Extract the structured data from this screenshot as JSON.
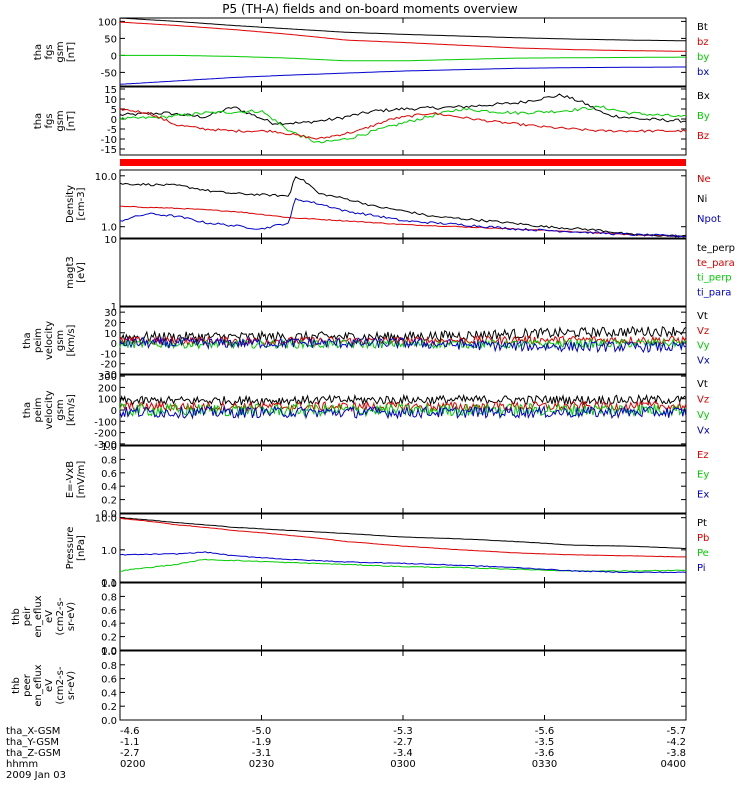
{
  "title": "P5 (TH-A) fields and on-board moments overview",
  "colors": {
    "black": "#000000",
    "red": "#dd0000",
    "green": "#00cc00",
    "blue": "#0000cc",
    "bar": "#ff0000"
  },
  "time_ticks": [
    "0200",
    "0230",
    "0300",
    "0330",
    "0400"
  ],
  "footer": {
    "rows": [
      {
        "label": "tha_X-GSM",
        "values": [
          "-4.6",
          "-5.0",
          "-5.3",
          "-5.6",
          "-5.7"
        ]
      },
      {
        "label": "tha_Y-GSM",
        "values": [
          "-1.1",
          "-1.9",
          "-2.7",
          "-3.5",
          "-4.2"
        ]
      },
      {
        "label": "tha_Z-GSM",
        "values": [
          "-2.7",
          "-3.1",
          "-3.4",
          "-3.6",
          "-3.8"
        ]
      },
      {
        "label": "hhmm",
        "values": []
      }
    ],
    "date": "2009 Jan 03"
  },
  "chart_data": [
    {
      "type": "line",
      "ylabel": [
        "tha",
        "fgs",
        "gsm",
        "[nT]"
      ],
      "ylim": [
        -90,
        110
      ],
      "yticks": [
        "100",
        "50",
        "0",
        "-50"
      ],
      "ytick_values": [
        100,
        50,
        0,
        -50
      ],
      "scale": "linear",
      "series": [
        {
          "name": "Bt",
          "color": "black",
          "x": [
            0,
            0.1,
            0.2,
            0.3,
            0.4,
            0.5,
            0.6,
            0.7,
            0.8,
            0.9,
            1
          ],
          "y": [
            110,
            100,
            88,
            78,
            68,
            62,
            57,
            52,
            48,
            45,
            43
          ]
        },
        {
          "name": "bz",
          "color": "red",
          "x": [
            0,
            0.1,
            0.2,
            0.3,
            0.4,
            0.5,
            0.6,
            0.7,
            0.8,
            0.9,
            1
          ],
          "y": [
            98,
            88,
            76,
            62,
            45,
            38,
            30,
            22,
            17,
            14,
            12
          ]
        },
        {
          "name": "by",
          "color": "green",
          "x": [
            0,
            0.1,
            0.2,
            0.3,
            0.4,
            0.5,
            0.6,
            0.7,
            0.8,
            0.9,
            1
          ],
          "y": [
            0,
            0,
            -3,
            -8,
            -16,
            -16,
            -12,
            -8,
            -7,
            -6,
            -5
          ]
        },
        {
          "name": "bx",
          "color": "blue",
          "x": [
            0,
            0.1,
            0.2,
            0.3,
            0.4,
            0.5,
            0.6,
            0.7,
            0.8,
            0.9,
            1
          ],
          "y": [
            -85,
            -75,
            -65,
            -58,
            -52,
            -46,
            -42,
            -38,
            -36,
            -35,
            -34
          ]
        }
      ]
    },
    {
      "type": "line",
      "ylabel": [
        "tha",
        "fgs",
        "gsm",
        "[nT]"
      ],
      "ylim": [
        -18,
        16
      ],
      "yticks": [
        "15",
        "10",
        "5",
        "0",
        "-5",
        "-10",
        "-15"
      ],
      "ytick_values": [
        15,
        10,
        5,
        0,
        -5,
        -10,
        -15
      ],
      "scale": "linear",
      "series": [
        {
          "name": "Bx",
          "color": "black",
          "x": [
            0,
            0.08,
            0.15,
            0.2,
            0.27,
            0.32,
            0.38,
            0.45,
            0.5,
            0.6,
            0.7,
            0.78,
            0.82,
            0.86,
            0.92,
            1
          ],
          "y": [
            2,
            3,
            1,
            6,
            -2,
            -2,
            0,
            4,
            5,
            6,
            8,
            12,
            8,
            2,
            0,
            -1
          ],
          "noise": 0.8
        },
        {
          "name": "By",
          "color": "green",
          "x": [
            0,
            0.08,
            0.15,
            0.25,
            0.3,
            0.35,
            0.4,
            0.45,
            0.5,
            0.6,
            0.7,
            0.78,
            0.85,
            0.9,
            1
          ],
          "y": [
            0,
            1,
            3,
            4,
            -6,
            -12,
            -10,
            -6,
            -2,
            5,
            3,
            4,
            6,
            3,
            1
          ],
          "noise": 0.8
        },
        {
          "name": "Bz",
          "color": "red",
          "x": [
            0,
            0.05,
            0.1,
            0.15,
            0.2,
            0.27,
            0.35,
            0.42,
            0.48,
            0.55,
            0.65,
            0.75,
            0.85,
            1
          ],
          "y": [
            5,
            3,
            -3,
            -5,
            -6,
            -6,
            -10,
            -6,
            0,
            3,
            -1,
            -4,
            -6,
            -6
          ],
          "noise": 0.6
        }
      ]
    },
    {
      "type": "line",
      "ylabel": [
        "Density",
        "[cm-3]"
      ],
      "ylim": [
        0.6,
        13
      ],
      "yticks": [
        "10.0",
        "1.0"
      ],
      "ytick_values": [
        10,
        1
      ],
      "scale": "log",
      "series": [
        {
          "name": "Ne",
          "color": "red",
          "x": [
            0,
            0.1,
            0.2,
            0.3,
            0.4,
            0.5,
            0.6,
            0.7,
            0.8,
            0.9,
            1
          ],
          "y": [
            2.5,
            2.3,
            2.0,
            1.5,
            1.3,
            1.1,
            1.0,
            0.9,
            0.8,
            0.7,
            0.65
          ],
          "noise": 0.02
        },
        {
          "name": "Ni",
          "color": "black",
          "x": [
            0,
            0.1,
            0.16,
            0.2,
            0.3,
            0.31,
            0.35,
            0.45,
            0.55,
            0.65,
            0.75,
            0.85,
            0.9,
            1
          ],
          "y": [
            7,
            6.5,
            5,
            4.5,
            4,
            10,
            4.5,
            2.5,
            1.6,
            1.3,
            1.0,
            0.85,
            0.7,
            0.65
          ],
          "noise": 0.05
        },
        {
          "name": "Npot",
          "color": "blue",
          "x": [
            0,
            0.05,
            0.1,
            0.15,
            0.25,
            0.3,
            0.31,
            0.4,
            0.5,
            0.6,
            0.7,
            0.8,
            0.9,
            1
          ],
          "y": [
            1.3,
            1.8,
            1.6,
            1.2,
            0.9,
            1.2,
            3.5,
            2.0,
            1.3,
            1.1,
            0.9,
            0.8,
            0.7,
            0.65
          ],
          "noise": 0.05
        }
      ]
    },
    {
      "type": "line",
      "ylabel": [
        "magt3",
        "[eV]"
      ],
      "ylim": [
        1,
        10
      ],
      "yticks": [
        "10",
        "1"
      ],
      "ytick_values": [
        10,
        1
      ],
      "scale": "log",
      "series": [
        {
          "name": "te_perp",
          "color": "black",
          "x": [],
          "y": []
        },
        {
          "name": "te_para",
          "color": "red",
          "x": [],
          "y": []
        },
        {
          "name": "ti_perp",
          "color": "green",
          "x": [],
          "y": []
        },
        {
          "name": "ti_para",
          "color": "blue",
          "x": [],
          "y": []
        }
      ]
    },
    {
      "type": "line",
      "ylabel": [
        "tha",
        "peim",
        "velocity",
        "gsm",
        "[km/s]"
      ],
      "ylim": [
        -30,
        35
      ],
      "yticks": [
        "30",
        "20",
        "10",
        "0",
        "-10",
        "-20",
        "-30"
      ],
      "ytick_values": [
        30,
        20,
        10,
        0,
        -10,
        -20,
        -30
      ],
      "scale": "linear",
      "series": [
        {
          "name": "Vt",
          "color": "black",
          "x": [
            0,
            0.5,
            0.7,
            1
          ],
          "y": [
            6,
            6,
            9,
            12
          ],
          "noise": 5
        },
        {
          "name": "Vz",
          "color": "red",
          "x": [
            0,
            0.5,
            0.7,
            1
          ],
          "y": [
            2,
            2,
            3,
            3
          ],
          "noise": 4
        },
        {
          "name": "Vy",
          "color": "green",
          "x": [
            0,
            0.5,
            0.7,
            1
          ],
          "y": [
            -1,
            -1,
            -1,
            0
          ],
          "noise": 4
        },
        {
          "name": "Vx",
          "color": "blue",
          "x": [
            0,
            0.5,
            0.7,
            1
          ],
          "y": [
            0,
            0,
            -3,
            -4
          ],
          "noise": 5
        }
      ]
    },
    {
      "type": "line",
      "ylabel": [
        "tha",
        "peim",
        "velocity",
        "gsm",
        "[km/s]"
      ],
      "ylim": [
        -310,
        310
      ],
      "yticks": [
        "300",
        "200",
        "100",
        "0",
        "-100",
        "-200",
        "-300"
      ],
      "ytick_values": [
        300,
        200,
        100,
        0,
        -100,
        -200,
        -300
      ],
      "scale": "linear",
      "series": [
        {
          "name": "Vt",
          "color": "black",
          "x": [
            0,
            0.5,
            1
          ],
          "y": [
            80,
            90,
            90
          ],
          "noise": 40
        },
        {
          "name": "Vz",
          "color": "red",
          "x": [
            0,
            0.5,
            1
          ],
          "y": [
            30,
            30,
            35
          ],
          "noise": 40
        },
        {
          "name": "Vy",
          "color": "green",
          "x": [
            0,
            0.5,
            1
          ],
          "y": [
            0,
            0,
            5
          ],
          "noise": 55
        },
        {
          "name": "Vx",
          "color": "blue",
          "x": [
            0,
            0.5,
            1
          ],
          "y": [
            -20,
            -20,
            -20
          ],
          "noise": 50
        }
      ]
    },
    {
      "type": "line",
      "ylabel": [
        "E=-VxB",
        "[mV/m]"
      ],
      "ylim": [
        0,
        1
      ],
      "yticks": [
        "1.0",
        "0.8",
        "0.6",
        "0.4",
        "0.2",
        "0.0"
      ],
      "ytick_values": [
        1,
        0.8,
        0.6,
        0.4,
        0.2,
        0
      ],
      "scale": "linear",
      "series": [
        {
          "name": "Ez",
          "color": "red",
          "x": [],
          "y": []
        },
        {
          "name": "Ey",
          "color": "green",
          "x": [],
          "y": []
        },
        {
          "name": "Ex",
          "color": "blue",
          "x": [],
          "y": []
        }
      ]
    },
    {
      "type": "line",
      "ylabel": [
        "Pressure",
        "[nPa]"
      ],
      "ylim": [
        0.1,
        13
      ],
      "yticks": [
        "10.0",
        "1.0",
        "0.1"
      ],
      "ytick_values": [
        10,
        1,
        0.1
      ],
      "scale": "log",
      "series": [
        {
          "name": "Pt",
          "color": "black",
          "x": [
            0,
            0.1,
            0.2,
            0.3,
            0.4,
            0.5,
            0.6,
            0.7,
            0.8,
            0.9,
            1
          ],
          "y": [
            10,
            7,
            5,
            4,
            3.2,
            2.5,
            2.2,
            1.8,
            1.4,
            1.3,
            1.1
          ],
          "noise": 0.01
        },
        {
          "name": "Pb",
          "color": "red",
          "x": [
            0,
            0.1,
            0.2,
            0.3,
            0.4,
            0.5,
            0.6,
            0.7,
            0.8,
            0.9,
            1
          ],
          "y": [
            9.5,
            6,
            4,
            2.8,
            1.8,
            1.3,
            1.0,
            0.8,
            0.7,
            0.65,
            0.6
          ],
          "noise": 0.01
        },
        {
          "name": "Pe",
          "color": "green",
          "x": [
            0,
            0.05,
            0.1,
            0.15,
            0.3,
            0.4,
            0.5,
            0.6,
            0.7,
            0.8,
            0.9,
            1
          ],
          "y": [
            0.22,
            0.28,
            0.35,
            0.5,
            0.4,
            0.35,
            0.3,
            0.28,
            0.25,
            0.22,
            0.22,
            0.23
          ],
          "noise": 0.03
        },
        {
          "name": "Pi",
          "color": "blue",
          "x": [
            0,
            0.1,
            0.15,
            0.2,
            0.3,
            0.4,
            0.5,
            0.6,
            0.7,
            0.8,
            0.9,
            1
          ],
          "y": [
            0.7,
            0.75,
            0.85,
            0.65,
            0.5,
            0.42,
            0.38,
            0.33,
            0.28,
            0.22,
            0.2,
            0.2
          ],
          "noise": 0.03
        }
      ]
    },
    {
      "type": "line",
      "ylabel": [
        "thb",
        "peir",
        "en_eflux",
        "eV",
        "(cm2-s-",
        "sr-eV)"
      ],
      "ylim": [
        0,
        1
      ],
      "yticks": [
        "1.0",
        "0.8",
        "0.6",
        "0.4",
        "0.2",
        "0.0"
      ],
      "ytick_values": [
        1,
        0.8,
        0.6,
        0.4,
        0.2,
        0
      ],
      "scale": "linear",
      "series": []
    },
    {
      "type": "line",
      "ylabel": [
        "thb",
        "peer",
        "en_eflux",
        "eV",
        "(cm2-s-",
        "sr-eV)"
      ],
      "ylim": [
        0,
        1
      ],
      "yticks": [
        "1.0",
        "0.8",
        "0.6",
        "0.4",
        "0.2",
        "0.0"
      ],
      "ytick_values": [
        1,
        0.8,
        0.6,
        0.4,
        0.2,
        0
      ],
      "scale": "linear",
      "series": []
    }
  ]
}
